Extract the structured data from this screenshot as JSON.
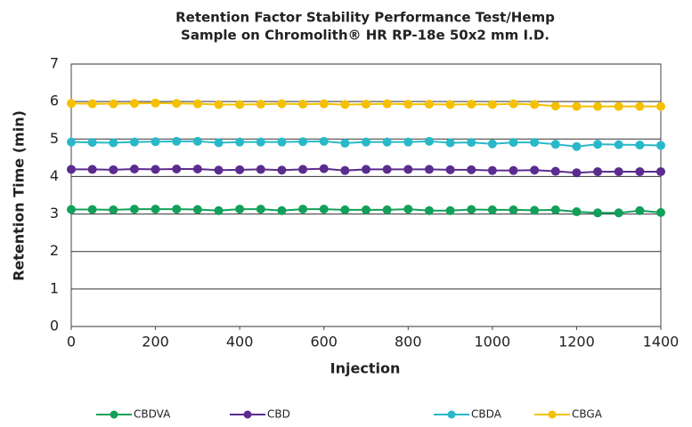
{
  "chart_data": {
    "type": "line",
    "title": [
      "Retention Factor Stability Performance Test/Hemp",
      "Sample on Chromolith® HR RP-18e 50x2 mm I.D."
    ],
    "x_label": "Injection",
    "y_label": "Retention Time (min)",
    "x": [
      0,
      50,
      100,
      150,
      200,
      250,
      300,
      350,
      400,
      450,
      500,
      550,
      600,
      650,
      700,
      750,
      800,
      850,
      900,
      950,
      1000,
      1050,
      1100,
      1150,
      1200,
      1250,
      1300,
      1350,
      1400
    ],
    "xlim": [
      0,
      1400
    ],
    "xticks": [
      0,
      200,
      400,
      600,
      800,
      1000,
      1200,
      1400
    ],
    "ylim": [
      0,
      7
    ],
    "yticks": [
      0,
      1,
      2,
      3,
      4,
      5,
      6,
      7
    ],
    "grid": true,
    "legend": "bottom",
    "series": [
      {
        "name": "CBDVA",
        "color": "#12a05a",
        "values": [
          3.12,
          3.12,
          3.11,
          3.13,
          3.13,
          3.13,
          3.12,
          3.09,
          3.13,
          3.13,
          3.09,
          3.13,
          3.13,
          3.11,
          3.11,
          3.11,
          3.13,
          3.09,
          3.09,
          3.12,
          3.11,
          3.11,
          3.1,
          3.11,
          3.06,
          3.03,
          3.03,
          3.09,
          3.04
        ]
      },
      {
        "name": "CBD",
        "color": "#5b2c8f",
        "values": [
          4.19,
          4.19,
          4.18,
          4.2,
          4.19,
          4.2,
          4.2,
          4.17,
          4.18,
          4.19,
          4.17,
          4.19,
          4.21,
          4.16,
          4.19,
          4.19,
          4.19,
          4.19,
          4.18,
          4.18,
          4.16,
          4.16,
          4.17,
          4.14,
          4.1,
          4.13,
          4.13,
          4.13,
          4.13
        ]
      },
      {
        "name": "CBDA",
        "color": "#29b8c8",
        "values": [
          4.92,
          4.91,
          4.9,
          4.92,
          4.93,
          4.94,
          4.94,
          4.9,
          4.92,
          4.92,
          4.92,
          4.93,
          4.94,
          4.89,
          4.92,
          4.92,
          4.92,
          4.94,
          4.9,
          4.91,
          4.87,
          4.91,
          4.91,
          4.86,
          4.8,
          4.86,
          4.85,
          4.84,
          4.83
        ]
      },
      {
        "name": "CBGA",
        "color": "#f5c000",
        "values": [
          5.95,
          5.94,
          5.94,
          5.95,
          5.96,
          5.95,
          5.94,
          5.92,
          5.92,
          5.93,
          5.94,
          5.93,
          5.94,
          5.92,
          5.93,
          5.94,
          5.93,
          5.93,
          5.92,
          5.93,
          5.92,
          5.94,
          5.92,
          5.88,
          5.87,
          5.87,
          5.87,
          5.87,
          5.87
        ]
      }
    ]
  }
}
